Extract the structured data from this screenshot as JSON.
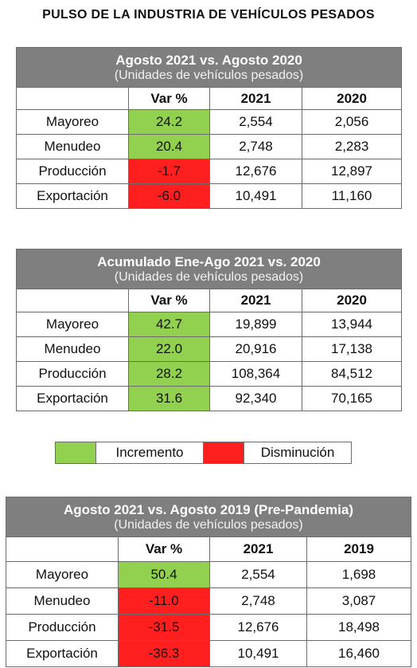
{
  "title": "PULSO DE LA INDUSTRIA DE VEHÍCULOS PESADOS",
  "tables": [
    {
      "title": "Agosto 2021 vs. Agosto 2020",
      "subtitle": "(Unidades de vehículos pesados)",
      "headers": [
        "Var %",
        "2021",
        "2020"
      ],
      "rows": [
        {
          "label": "Mayoreo",
          "var": "24.2",
          "status": "up",
          "v1": "2,554",
          "v2": "2,056"
        },
        {
          "label": "Menudeo",
          "var": "20.4",
          "status": "up",
          "v1": "2,748",
          "v2": "2,283"
        },
        {
          "label": "Producción",
          "var": "-1.7",
          "status": "down",
          "v1": "12,676",
          "v2": "12,897"
        },
        {
          "label": "Exportación",
          "var": "-6.0",
          "status": "down",
          "v1": "10,491",
          "v2": "11,160"
        }
      ]
    },
    {
      "title": "Acumulado Ene-Ago 2021 vs. 2020",
      "subtitle": "(Unidades de vehículos pesados)",
      "headers": [
        "Var %",
        "2021",
        "2020"
      ],
      "rows": [
        {
          "label": "Mayoreo",
          "var": "42.7",
          "status": "up",
          "v1": "19,899",
          "v2": "13,944"
        },
        {
          "label": "Menudeo",
          "var": "22.0",
          "status": "up",
          "v1": "20,916",
          "v2": "17,138"
        },
        {
          "label": "Producción",
          "var": "28.2",
          "status": "up",
          "v1": "108,364",
          "v2": "84,512"
        },
        {
          "label": "Exportación",
          "var": "31.6",
          "status": "up",
          "v1": "92,340",
          "v2": "70,165"
        }
      ]
    },
    {
      "title": "Agosto 2021 vs. Agosto 2019 (Pre-Pandemia)",
      "subtitle": "(Unidades de vehículos pesados)",
      "headers": [
        "Var %",
        "2021",
        "2019"
      ],
      "rows": [
        {
          "label": "Mayoreo",
          "var": "50.4",
          "status": "up",
          "v1": "2,554",
          "v2": "1,698"
        },
        {
          "label": "Menudeo",
          "var": "-11.0",
          "status": "down",
          "v1": "2,748",
          "v2": "3,087"
        },
        {
          "label": "Producción",
          "var": "-31.5",
          "status": "down",
          "v1": "12,676",
          "v2": "18,498"
        },
        {
          "label": "Exportación",
          "var": "-36.3",
          "status": "down",
          "v1": "10,491",
          "v2": "16,460"
        }
      ]
    }
  ],
  "legend": {
    "increase_label": "Incremento",
    "decrease_label": "Disminución",
    "increase_color": "#92d050",
    "decrease_color": "#ff1f1f"
  }
}
